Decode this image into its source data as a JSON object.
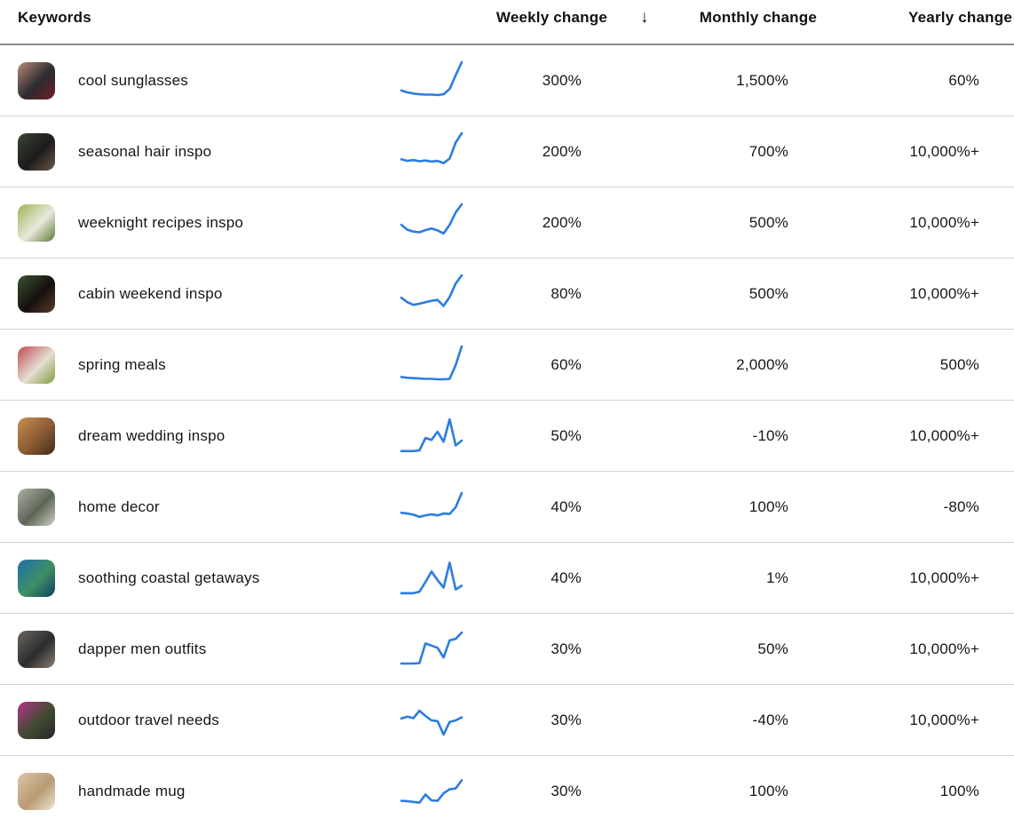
{
  "header": {
    "keywords_label": "Keywords",
    "weekly_label": "Weekly change",
    "monthly_label": "Monthly change",
    "yearly_label": "Yearly change",
    "sort_glyph": "↓",
    "sorted_by": "Weekly change",
    "sort_direction": "descending"
  },
  "colors": {
    "sparkline": "#2b7de0",
    "row_divider": "#d4d4d4",
    "header_divider": "#8f8f8f",
    "text": "#161616"
  },
  "rows": [
    {
      "keyword": "cool sunglasses",
      "weekly": "300%",
      "monthly": "1,500%",
      "yearly": "60%",
      "sparkline": [
        24,
        19,
        16,
        14,
        13,
        13,
        12,
        14,
        28,
        65,
        100
      ],
      "thumb_colors": [
        "#b98b76",
        "#2b2b30",
        "#701f28"
      ]
    },
    {
      "keyword": "seasonal hair inspo",
      "weekly": "200%",
      "monthly": "700%",
      "yearly": "10,000%+",
      "sparkline": [
        30,
        26,
        28,
        25,
        27,
        24,
        26,
        20,
        32,
        75,
        100
      ],
      "thumb_colors": [
        "#3a4634",
        "#1d1a1c",
        "#6b5a4a"
      ]
    },
    {
      "keyword": "weeknight recipes inspo",
      "weekly": "200%",
      "monthly": "500%",
      "yearly": "10,000%+",
      "sparkline": [
        45,
        32,
        27,
        25,
        31,
        35,
        30,
        22,
        45,
        78,
        100
      ],
      "thumb_colors": [
        "#9ab54f",
        "#e8e9dd",
        "#5c7a2e"
      ]
    },
    {
      "keyword": "cabin weekend inspo",
      "weekly": "80%",
      "monthly": "500%",
      "yearly": "10,000%+",
      "sparkline": [
        40,
        28,
        21,
        24,
        28,
        32,
        34,
        18,
        42,
        78,
        100
      ],
      "thumb_colors": [
        "#3c5230",
        "#14100e",
        "#5a3b2a"
      ]
    },
    {
      "keyword": "spring meals",
      "weekly": "60%",
      "monthly": "2,000%",
      "yearly": "500%",
      "sparkline": [
        18,
        16,
        15,
        14,
        13,
        13,
        12,
        12,
        13,
        50,
        100
      ],
      "thumb_colors": [
        "#c24a52",
        "#e4dfd2",
        "#7e9a3c"
      ]
    },
    {
      "keyword": "dream wedding inspo",
      "weekly": "50%",
      "monthly": "-10%",
      "yearly": "10,000%+",
      "sparkline": [
        10,
        10,
        10,
        12,
        45,
        40,
        62,
        35,
        95,
        25,
        38
      ],
      "thumb_colors": [
        "#c98f54",
        "#8a5a33",
        "#3f2a1c"
      ]
    },
    {
      "keyword": "home decor",
      "weekly": "40%",
      "monthly": "100%",
      "yearly": "-80%",
      "sparkline": [
        35,
        33,
        30,
        24,
        28,
        31,
        28,
        33,
        32,
        50,
        88
      ],
      "thumb_colors": [
        "#aab0a2",
        "#5c6657",
        "#cfd2c8"
      ]
    },
    {
      "keyword": "soothing coastal getaways",
      "weekly": "40%",
      "monthly": "1%",
      "yearly": "10,000%+",
      "sparkline": [
        10,
        10,
        10,
        14,
        40,
        68,
        45,
        25,
        92,
        20,
        30
      ],
      "thumb_colors": [
        "#1c6fae",
        "#3f8f63",
        "#0e3f66"
      ]
    },
    {
      "keyword": "dapper men outfits",
      "weekly": "30%",
      "monthly": "50%",
      "yearly": "10,000%+",
      "sparkline": [
        12,
        12,
        12,
        13,
        66,
        60,
        54,
        28,
        74,
        78,
        95
      ],
      "thumb_colors": [
        "#6a665f",
        "#2c2c2e",
        "#8a7f72"
      ]
    },
    {
      "keyword": "outdoor travel needs",
      "weekly": "30%",
      "monthly": "-40%",
      "yearly": "10,000%+",
      "sparkline": [
        55,
        60,
        56,
        76,
        62,
        50,
        48,
        12,
        46,
        50,
        58
      ],
      "thumb_colors": [
        "#b5338a",
        "#3e4b2e",
        "#2a2330"
      ]
    },
    {
      "keyword": "handmade mug",
      "weekly": "30%",
      "monthly": "100%",
      "yearly": "100%",
      "sparkline": [
        25,
        24,
        22,
        20,
        42,
        26,
        25,
        45,
        56,
        58,
        80
      ],
      "thumb_colors": [
        "#d9c6a8",
        "#b99a73",
        "#efe6d4"
      ]
    }
  ]
}
